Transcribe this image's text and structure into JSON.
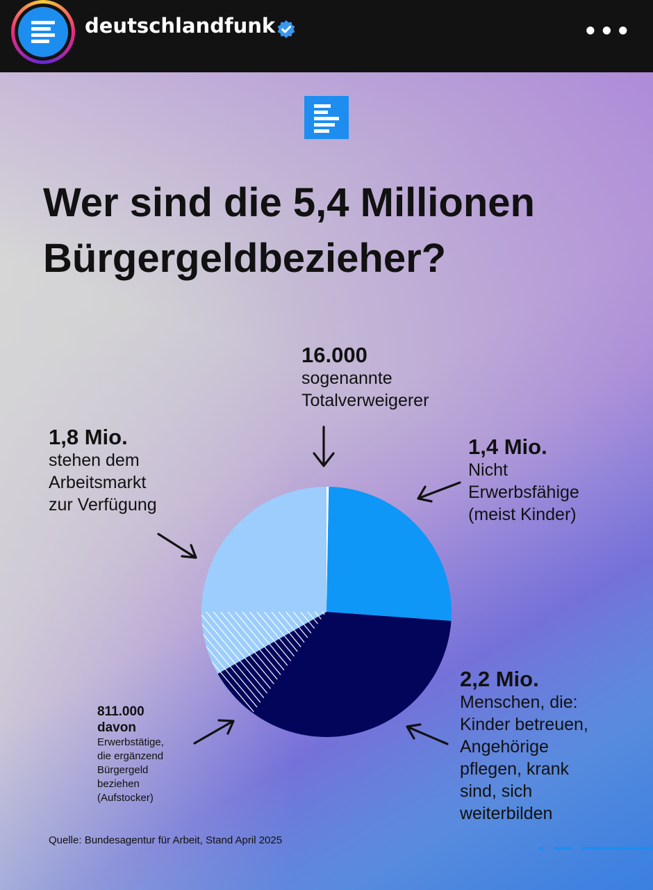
{
  "header": {
    "username": "deutschlandfunk",
    "verified": true,
    "avatar_icon": "dlf-logo-icon",
    "menu_label": "•••"
  },
  "post": {
    "headline": "Wer sind die 5,4 Millionen Bürgergeldbezieher?",
    "source": "Quelle: Bundesagentur für Arbeit, Stand April 2025"
  },
  "colors": {
    "nicht_erwerbsfaehige": "#0f97f7",
    "menschen_die": "#03055a",
    "arbeitsmarkt": "#9ccdfc",
    "totalverweigerer": "#ffffff",
    "hatch_light": "#ffffff",
    "brand_blue": "#1d8ef0"
  },
  "labels": {
    "totalverweigerer": {
      "num": "16.000",
      "txt": "sogenannte\nTotalverweigerer"
    },
    "arbeitsmarkt": {
      "num": "1,8 Mio.",
      "txt": "stehen dem\nArbeitsmarkt\nzur Verfügung"
    },
    "nicht_erwerbsfaehige": {
      "num": "1,4 Mio.",
      "txt": "Nicht\nErwerbsfähige\n(meist Kinder)"
    },
    "menschen_die": {
      "num": "2,2 Mio.",
      "txt": "Menschen, die:\nKinder betreuen,\nAngehörige\npflegen, krank\nsind, sich\nweiterbilden"
    },
    "aufstocker": {
      "num": "811.000",
      "sub": "davon",
      "txt": "Erwerbstätige,\ndie ergänzend\nBürgergeld\nbeziehen\n(Aufstocker)"
    }
  },
  "chart_data": {
    "type": "pie",
    "title": "Wer sind die 5,4 Millionen Bürgergeldbezieher?",
    "unit": "Personen",
    "total": 5400000,
    "slices": [
      {
        "name": "sogenannte Totalverweigerer",
        "value": 16000,
        "color": "#ffffff"
      },
      {
        "name": "Nicht Erwerbsfähige (meist Kinder)",
        "value": 1400000,
        "color": "#0f97f7"
      },
      {
        "name": "Menschen, die: Kinder betreuen, Angehörige pflegen, krank sind, sich weiterbilden",
        "value": 2200000,
        "color": "#03055a"
      },
      {
        "name": "stehen dem Arbeitsmarkt zur Verfügung",
        "value": 1800000,
        "color": "#9ccdfc"
      }
    ],
    "overlay": {
      "name": "davon Erwerbstätige, die ergänzend Bürgergeld beziehen (Aufstocker)",
      "value": 811000,
      "pattern": "hatched"
    }
  }
}
